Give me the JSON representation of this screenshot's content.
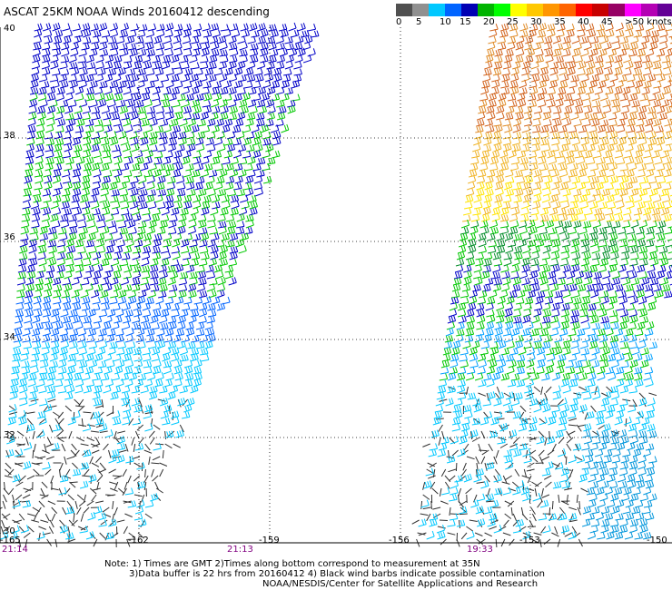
{
  "title": "ASCAT 25KM NOAA Winds 20160412 descending",
  "legend": {
    "labels": [
      "0",
      "5",
      "10",
      "15",
      "20",
      "25",
      "30",
      "35",
      "40",
      "45",
      ">50 knots"
    ],
    "colors": [
      "#505050",
      "#909090",
      "#00c8ff",
      "#0064ff",
      "#0000b4",
      "#00b400",
      "#00ff00",
      "#ffff00",
      "#ffc800",
      "#ff9600",
      "#ff6400",
      "#ff0000",
      "#c80000",
      "#960064",
      "#ff00ff",
      "#b400b4",
      "#640096",
      "#3c0064"
    ]
  },
  "lat_labels": [
    "40",
    "38",
    "36",
    "34",
    "32",
    "30"
  ],
  "lon_labels": [
    "-165",
    "-162",
    "-159",
    "-156",
    "-153",
    "-150"
  ],
  "time_labels": [
    "21:14",
    "21:13",
    "19:33"
  ],
  "notes": [
    "Note: 1) Times are GMT 2)Times along bottom correspond to measurement at 35N",
    "3)Data buffer is 22 hrs from 20160412 4) Black wind barbs indicate possible contamination",
    "NOAA/NESDIS/Center for Satellite Applications and Research"
  ]
}
